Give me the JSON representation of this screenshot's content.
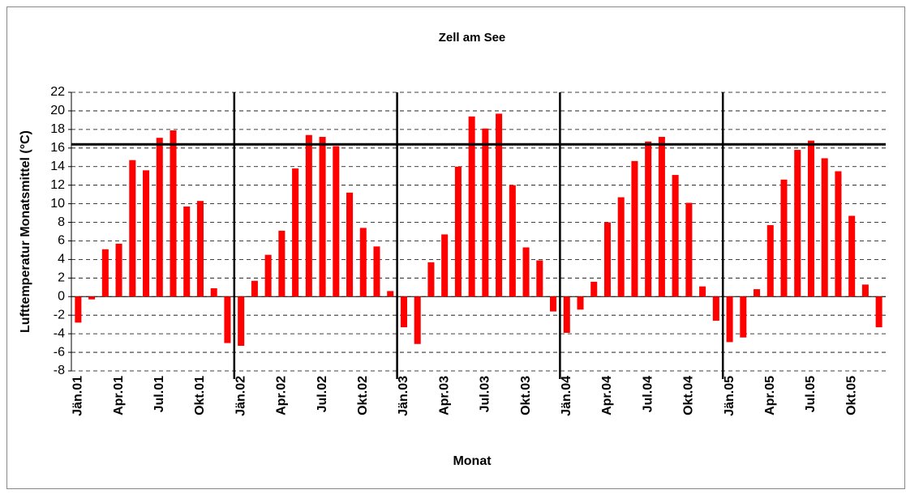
{
  "chart_data": {
    "type": "bar",
    "title": "Zell am See",
    "x_label": "Monat",
    "y_label": "Lufttemperatur Monatsmittel (°C)",
    "categories": [
      "Jän.01",
      null,
      null,
      "Apr.01",
      null,
      null,
      "Jul.01",
      null,
      null,
      "Okt.01",
      null,
      null,
      "Jän.02",
      null,
      null,
      "Apr.02",
      null,
      null,
      "Jul.02",
      null,
      null,
      "Okt.02",
      null,
      null,
      "Jän.03",
      null,
      null,
      "Apr.03",
      null,
      null,
      "Jul.03",
      null,
      null,
      "Okt.03",
      null,
      null,
      "Jän.04",
      null,
      null,
      "Apr.04",
      null,
      null,
      "Jul.04",
      null,
      null,
      "Okt.04",
      null,
      null,
      "Jän.05",
      null,
      null,
      "Apr.05",
      null,
      null,
      "Jul.05",
      null,
      null,
      "Okt.05",
      null,
      null
    ],
    "values": [
      -2.8,
      -0.3,
      5.1,
      5.7,
      14.7,
      13.6,
      17.1,
      17.9,
      9.7,
      10.3,
      0.9,
      -5.0,
      -5.3,
      1.7,
      4.5,
      7.1,
      13.8,
      17.4,
      17.2,
      16.2,
      11.2,
      7.4,
      5.4,
      0.6,
      -3.3,
      -5.1,
      3.7,
      6.7,
      14.0,
      19.4,
      18.1,
      19.7,
      12.0,
      5.3,
      3.9,
      -1.6,
      -3.9,
      -1.4,
      1.6,
      8.0,
      10.7,
      14.6,
      16.7,
      17.2,
      13.1,
      10.1,
      1.1,
      -2.6,
      -4.9,
      -4.4,
      0.8,
      7.7,
      12.6,
      15.8,
      16.8,
      14.9,
      13.5,
      8.7,
      1.3,
      -3.3
    ],
    "color": "#ff0000",
    "ylim": [
      -8,
      22
    ],
    "yticks": [
      -8,
      -6,
      -4,
      -2,
      0,
      2,
      4,
      6,
      8,
      10,
      12,
      14,
      16,
      18,
      20,
      22
    ],
    "grid": true,
    "hline": 16.4
  }
}
